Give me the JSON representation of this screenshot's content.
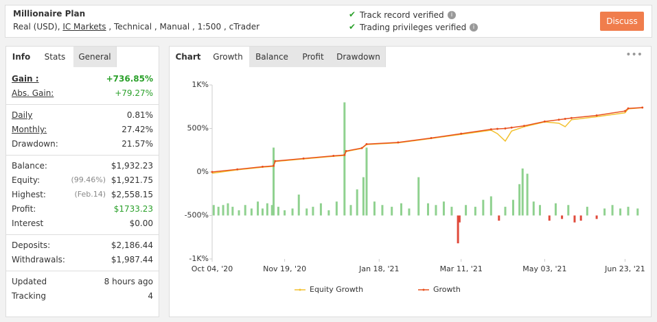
{
  "header": {
    "title": "Millionaire Plan",
    "subtitle": [
      "Real (USD), ",
      "IC Markets",
      " , Technical , Manual , 1:500 , cTrader"
    ],
    "verified": [
      "Track record verified",
      "Trading privileges verified"
    ],
    "button": "Discuss"
  },
  "left_tabs": [
    "Info",
    "Stats",
    "General"
  ],
  "stats": [
    [
      {
        "label": "Gain :",
        "value": "+736.85%",
        "underlined": true,
        "bold": true,
        "color": "#2aa02a"
      },
      {
        "label": "Abs. Gain:",
        "value": "+79.27%",
        "underlined": true,
        "color": "#2aa02a"
      }
    ],
    [
      {
        "label": "Daily",
        "value": "0.81%",
        "underlined": true
      },
      {
        "label": "Monthly:",
        "value": "27.42%",
        "underlined": true
      },
      {
        "label": "Drawdown:",
        "value": "21.57%"
      }
    ],
    [
      {
        "label": "Balance:",
        "value": "$1,932.23"
      },
      {
        "label": "Equity:",
        "note": "(99.46%)",
        "value": "$1,921.75"
      },
      {
        "label": "Highest:",
        "note": "(Feb.14)",
        "value": "$2,558.15"
      },
      {
        "label": "Profit:",
        "value": "$1733.23",
        "color": "#2aa02a"
      },
      {
        "label": "Interest",
        "value": "$0.00"
      }
    ],
    [
      {
        "label": "Deposits:",
        "value": "$2,186.44"
      },
      {
        "label": "Withdrawals:",
        "value": "$1,987.44"
      }
    ],
    [
      {
        "label": "Updated",
        "value": "8 hours ago"
      },
      {
        "label": "Tracking",
        "value": "4"
      }
    ]
  ],
  "chart_tabs": [
    "Chart",
    "Growth",
    "Balance",
    "Profit",
    "Drawdown"
  ],
  "chart_data": {
    "type": "line",
    "x": [
      "2020-10-04",
      "2020-10-20",
      "2020-11-05",
      "2020-11-12",
      "2020-11-13",
      "2020-12-01",
      "2020-12-20",
      "2020-12-27",
      "2020-12-28",
      "2021-01-07",
      "2021-01-10",
      "2021-01-30",
      "2021-02-20",
      "2021-03-11",
      "2021-03-30",
      "2021-04-03",
      "2021-04-08",
      "2021-04-12",
      "2021-04-20",
      "2021-05-03",
      "2021-05-12",
      "2021-05-16",
      "2021-05-20",
      "2021-06-05",
      "2021-06-23",
      "2021-06-25",
      "2021-07-04"
    ],
    "series": [
      {
        "name": "Equity Growth",
        "color": "#f2c12e",
        "values": [
          -15,
          25,
          55,
          65,
          120,
          150,
          180,
          190,
          235,
          270,
          315,
          335,
          385,
          432,
          480,
          440,
          355,
          470,
          520,
          575,
          560,
          520,
          600,
          635,
          680,
          725,
          738
        ]
      },
      {
        "name": "Growth",
        "color": "#e8501d",
        "values": [
          0,
          30,
          60,
          70,
          125,
          155,
          185,
          195,
          240,
          275,
          320,
          340,
          390,
          440,
          490,
          495,
          500,
          510,
          530,
          580,
          600,
          610,
          620,
          650,
          700,
          730,
          740
        ]
      }
    ],
    "bar_series": {
      "axis": "y2",
      "color": "#8fd18f",
      "negative_color": "#e04a3b",
      "x": [
        "2020-10-05",
        "2020-10-08",
        "2020-10-11",
        "2020-10-14",
        "2020-10-17",
        "2020-10-21",
        "2020-10-25",
        "2020-10-29",
        "2020-11-02",
        "2020-11-05",
        "2020-11-08",
        "2020-11-11",
        "2020-11-12",
        "2020-11-15",
        "2020-11-19",
        "2020-11-24",
        "2020-11-28",
        "2020-12-03",
        "2020-12-07",
        "2020-12-12",
        "2020-12-17",
        "2020-12-22",
        "2020-12-27",
        "2020-12-31",
        "2021-01-04",
        "2021-01-08",
        "2021-01-10",
        "2021-01-15",
        "2021-01-20",
        "2021-01-26",
        "2021-02-01",
        "2021-02-06",
        "2021-02-12",
        "2021-02-18",
        "2021-02-23",
        "2021-02-28",
        "2021-03-05",
        "2021-03-09",
        "2021-03-10",
        "2021-03-14",
        "2021-03-20",
        "2021-03-25",
        "2021-03-30",
        "2021-04-04",
        "2021-04-08",
        "2021-04-13",
        "2021-04-17",
        "2021-04-19",
        "2021-04-22",
        "2021-04-26",
        "2021-04-30",
        "2021-05-06",
        "2021-05-10",
        "2021-05-14",
        "2021-05-18",
        "2021-05-22",
        "2021-05-26",
        "2021-05-30",
        "2021-06-05",
        "2021-06-10",
        "2021-06-15",
        "2021-06-20",
        "2021-06-25",
        "2021-07-01"
      ],
      "values": [
        6,
        5,
        6,
        7,
        5,
        3,
        6,
        4,
        8,
        4,
        7,
        6,
        39,
        5,
        3,
        4,
        12,
        4,
        5,
        7,
        3,
        8,
        65,
        6,
        15,
        22,
        39,
        8,
        6,
        5,
        7,
        4,
        22,
        7,
        6,
        8,
        5,
        -16,
        -4,
        6,
        5,
        9,
        11,
        -3,
        5,
        9,
        18,
        27,
        24,
        8,
        6,
        -3,
        7,
        -2,
        6,
        -4,
        -3,
        5,
        -2,
        4,
        6,
        4,
        5,
        4
      ]
    },
    "xlim": [
      "2020-10-04",
      "2021-07-05"
    ],
    "xticks": [
      {
        "value": "2020-10-04",
        "label": "Oct 04, '20"
      },
      {
        "value": "2020-11-19",
        "label": "Nov 19, '20"
      },
      {
        "value": "2021-01-18",
        "label": "Jan 18, '21"
      },
      {
        "value": "2021-03-11",
        "label": "Mar 11, '21"
      },
      {
        "value": "2021-05-03",
        "label": "May 03, '21"
      },
      {
        "value": "2021-06-23",
        "label": "Jun 23, '21"
      }
    ],
    "ylim": [
      -1000,
      1000
    ],
    "yticks": [
      {
        "value": 1000,
        "label": "1K%"
      },
      {
        "value": 500,
        "label": "500%"
      },
      {
        "value": 0,
        "label": "0%"
      },
      {
        "value": -500,
        "label": "-500%"
      },
      {
        "value": -1000,
        "label": "-1K%"
      }
    ],
    "y2lim": [
      -25,
      75
    ],
    "legend": "bottom"
  }
}
